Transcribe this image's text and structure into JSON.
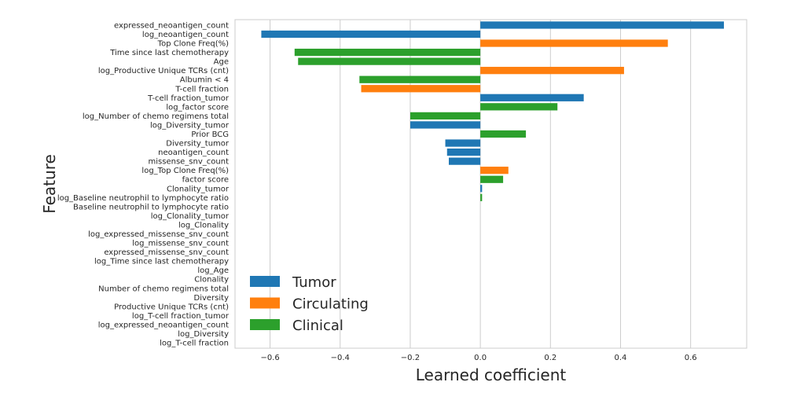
{
  "chart_data": {
    "type": "bar",
    "orientation": "horizontal",
    "xlabel": "Learned coefficient",
    "ylabel": "Feature",
    "xlim": [
      -0.7,
      0.76
    ],
    "xticks": [
      -0.6,
      -0.4,
      -0.2,
      0.0,
      0.2,
      0.4,
      0.6
    ],
    "xtick_labels": [
      "−0.6",
      "−0.4",
      "−0.2",
      "0.0",
      "0.2",
      "0.4",
      "0.6"
    ],
    "grid": "vertical",
    "legend": {
      "placement": "lower-left",
      "entries": [
        {
          "name": "Tumor",
          "color": "#1f77b4"
        },
        {
          "name": "Circulating",
          "color": "#ff7f0e"
        },
        {
          "name": "Clinical",
          "color": "#2ca02c"
        }
      ]
    },
    "categories": [
      "expressed_neoantigen_count",
      "log_neoantigen_count",
      "Top Clone Freq(%)",
      "Time since last chemotherapy",
      "Age",
      "log_Productive Unique TCRs (cnt)",
      "Albumin < 4",
      "T-cell fraction",
      "T-cell fraction_tumor",
      "log_factor score",
      "log_Number of chemo regimens total",
      "log_Diversity_tumor",
      "Prior BCG",
      "Diversity_tumor",
      "neoantigen_count",
      "missense_snv_count",
      "log_Top Clone Freq(%)",
      "factor score",
      "Clonality_tumor",
      "log_Baseline neutrophil to lymphocyte ratio",
      "Baseline neutrophil to lymphocyte ratio",
      "log_Clonality_tumor",
      "log_Clonality",
      "log_expressed_missense_snv_count",
      "log_missense_snv_count",
      "expressed_missense_snv_count",
      "log_Time since last chemotherapy",
      "log_Age",
      "Clonality",
      "Number of chemo regimens total",
      "Diversity",
      "Productive Unique TCRs (cnt)",
      "log_T-cell fraction_tumor",
      "log_expressed_neoantigen_count",
      "log_Diversity",
      "log_T-cell fraction"
    ],
    "values": [
      0.695,
      -0.625,
      0.535,
      -0.53,
      -0.52,
      0.41,
      -0.345,
      -0.34,
      0.295,
      0.22,
      -0.2,
      -0.2,
      0.13,
      -0.1,
      -0.095,
      -0.09,
      0.08,
      0.065,
      0.005,
      0.005,
      0,
      0,
      0,
      0,
      0,
      0,
      0,
      0,
      0,
      0,
      0,
      0,
      0,
      0,
      0,
      0
    ],
    "groups": [
      "Tumor",
      "Tumor",
      "Circulating",
      "Clinical",
      "Clinical",
      "Circulating",
      "Clinical",
      "Circulating",
      "Tumor",
      "Clinical",
      "Clinical",
      "Tumor",
      "Clinical",
      "Tumor",
      "Tumor",
      "Tumor",
      "Circulating",
      "Clinical",
      "Tumor",
      "Clinical",
      "Clinical",
      "Tumor",
      "Circulating",
      "Tumor",
      "Tumor",
      "Tumor",
      "Clinical",
      "Clinical",
      "Circulating",
      "Clinical",
      "Circulating",
      "Circulating",
      "Tumor",
      "Tumor",
      "Circulating",
      "Circulating"
    ]
  }
}
